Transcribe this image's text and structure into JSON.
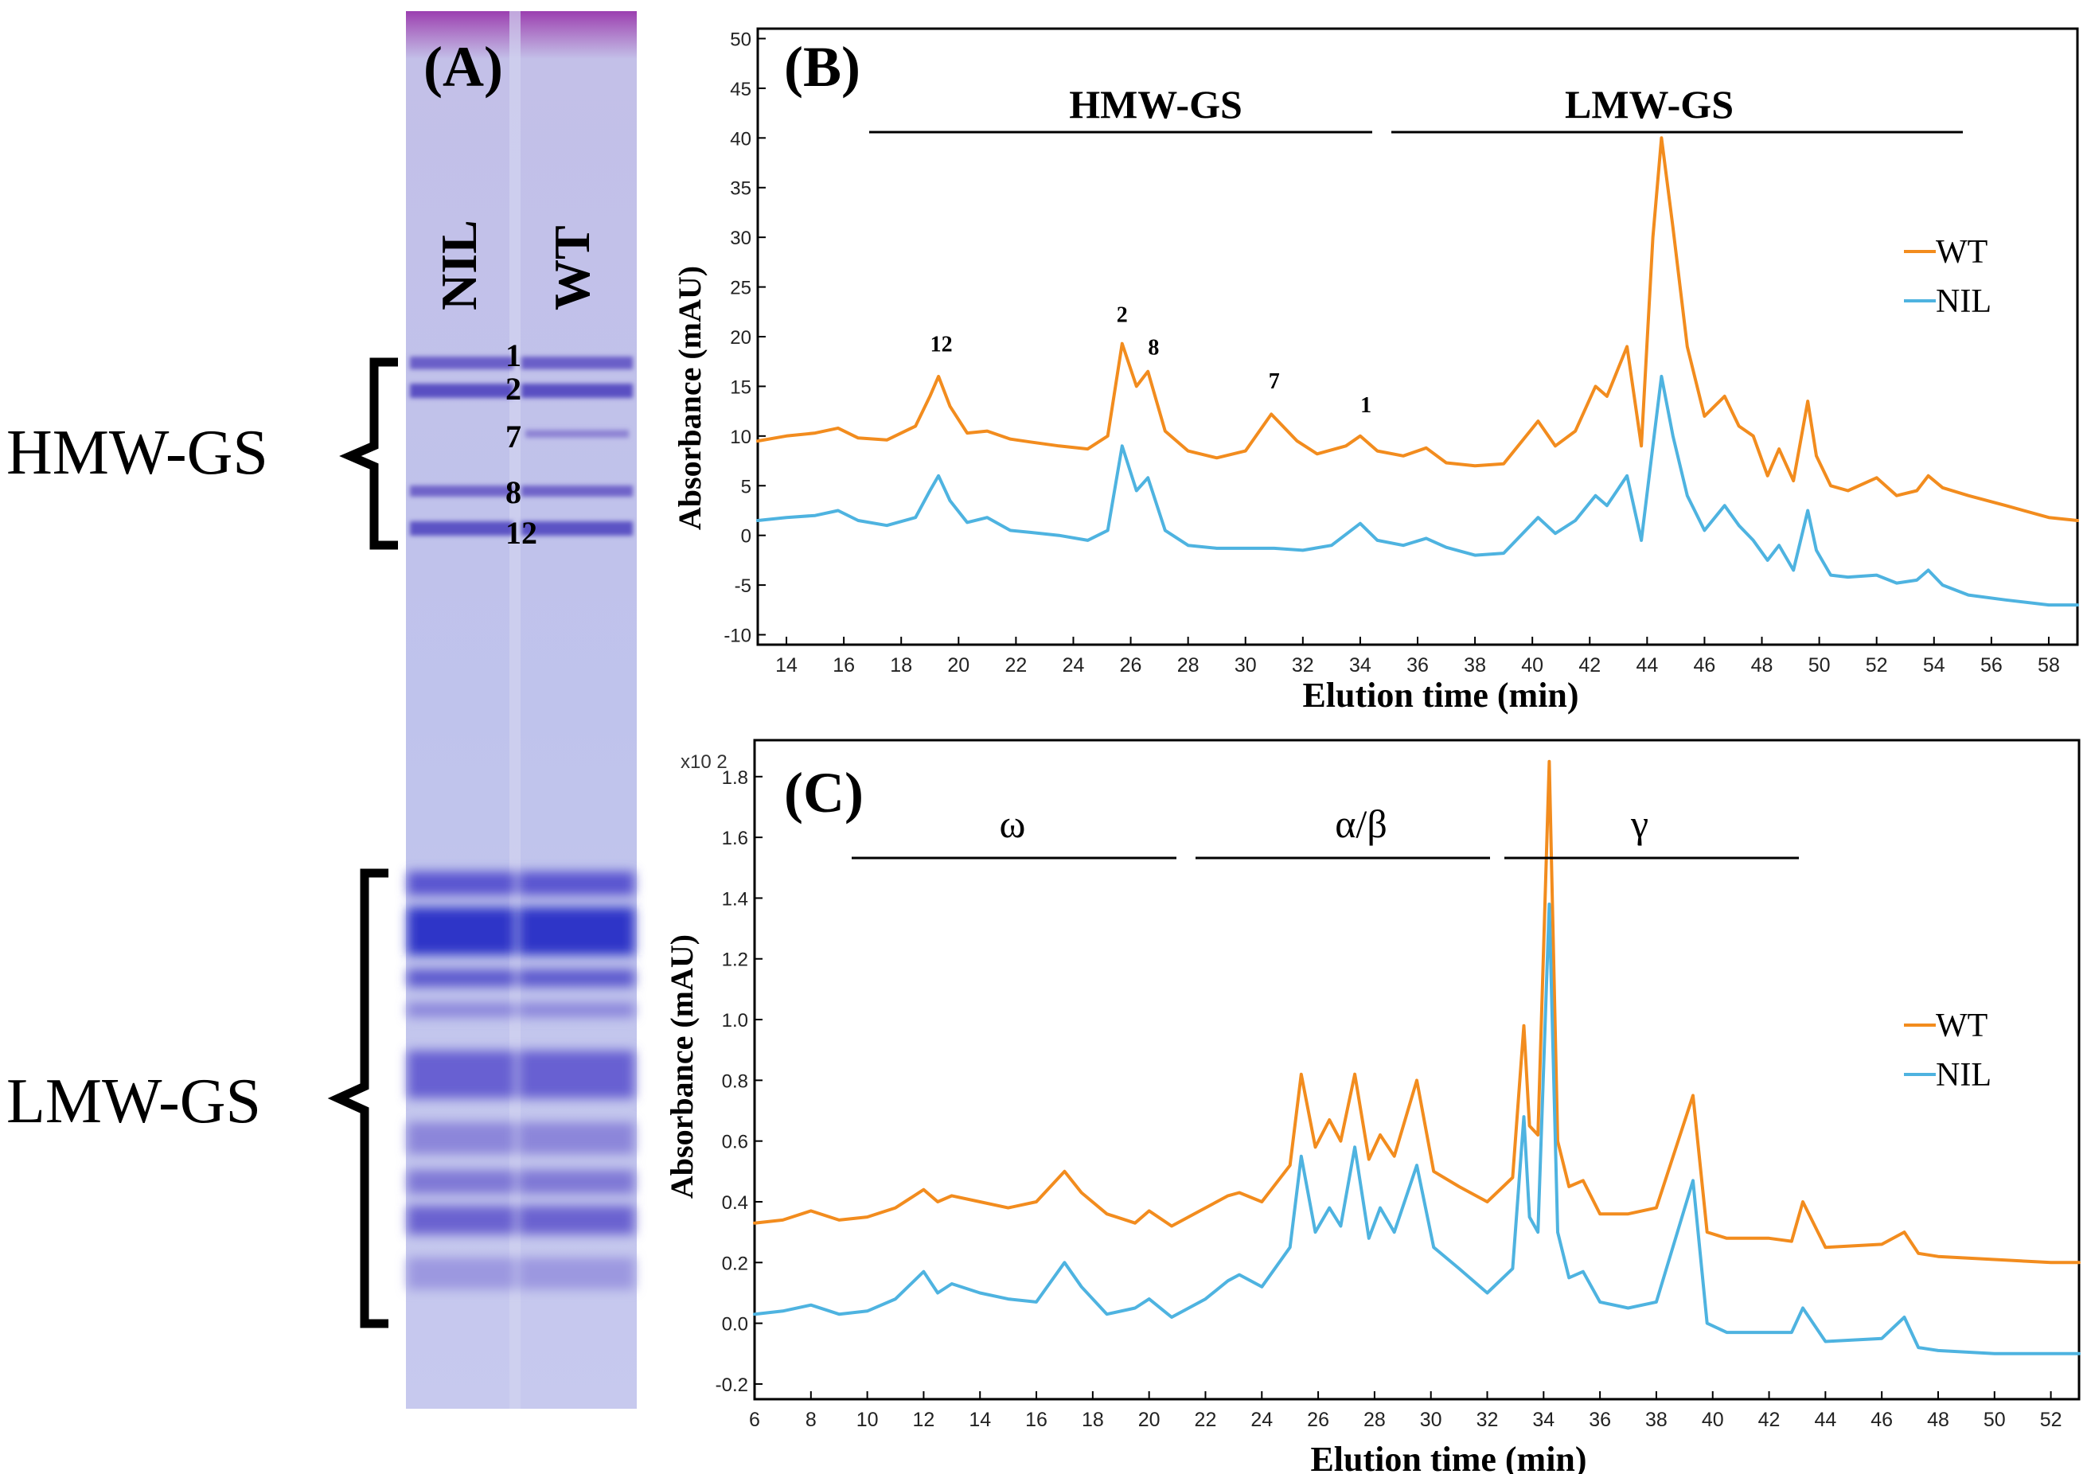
{
  "colors": {
    "WT": "#F28C1E",
    "NIL": "#4EB3E0",
    "axis": "#000000"
  },
  "panel_A": {
    "label": "(A)",
    "lane_labels": [
      "NIL",
      "WT"
    ],
    "group_labels": {
      "hmw": "HMW-GS",
      "lmw": "LMW-GS"
    },
    "band_labels": [
      "1",
      "2",
      "7",
      "8",
      "12"
    ]
  },
  "panel_B": {
    "label": "(B)",
    "region_labels": [
      "HMW-GS",
      "LMW-GS"
    ],
    "peak_labels": [
      "12",
      "2",
      "8",
      "7",
      "1"
    ],
    "xlabel": "Elution time (min)",
    "ylabel": "Absorbance (mAU)",
    "legend": [
      "WT",
      "NIL"
    ]
  },
  "panel_C": {
    "label": "(C)",
    "region_labels": [
      "ω",
      "α/β",
      "γ"
    ],
    "scale_note": "x10 2",
    "xlabel": "Elution time (min)",
    "ylabel": "Absorbance (mAU)",
    "legend": [
      "WT",
      "NIL"
    ]
  },
  "chart_data": [
    {
      "panel": "B",
      "type": "line",
      "title": "",
      "xlabel": "Elution time (min)",
      "ylabel": "Absorbance (mAU)",
      "xlim": [
        13,
        59
      ],
      "ylim": [
        -11,
        51
      ],
      "xticks": [
        14,
        16,
        18,
        20,
        22,
        24,
        26,
        28,
        30,
        32,
        34,
        36,
        38,
        40,
        42,
        44,
        46,
        48,
        50,
        52,
        54,
        56,
        58
      ],
      "yticks": [
        -10,
        -5,
        0,
        5,
        10,
        15,
        20,
        25,
        30,
        35,
        40,
        45,
        50
      ],
      "legend_position": "right",
      "grid": false,
      "series": [
        {
          "name": "WT",
          "x": [
            13,
            14,
            15,
            15.8,
            16.5,
            17.5,
            18.5,
            19,
            19.3,
            19.7,
            20.3,
            21,
            21.8,
            22.5,
            23.5,
            24.5,
            25.2,
            25.7,
            26.2,
            26.6,
            27.2,
            28,
            29,
            30,
            30.9,
            31.8,
            32.5,
            33.5,
            34,
            34.6,
            35.5,
            36.3,
            37,
            38,
            39,
            40.2,
            40.8,
            41.5,
            42.2,
            42.6,
            43.3,
            43.8,
            44.2,
            44.5,
            44.9,
            45.4,
            46,
            46.7,
            47.2,
            47.7,
            48.2,
            48.6,
            49.1,
            49.6,
            49.9,
            50.4,
            51,
            52,
            52.7,
            53.4,
            53.8,
            54.3,
            55.2,
            56.5,
            58,
            59
          ],
          "y": [
            9.5,
            10,
            10.3,
            10.8,
            9.8,
            9.6,
            11,
            14,
            16,
            13,
            10.3,
            10.5,
            9.7,
            9.4,
            9,
            8.7,
            10,
            19.3,
            15,
            16.5,
            10.5,
            8.5,
            7.8,
            8.5,
            12.2,
            9.5,
            8.2,
            9,
            10,
            8.5,
            8,
            8.8,
            7.3,
            7,
            7.2,
            11.5,
            9,
            10.5,
            15,
            14,
            19,
            9,
            30,
            40,
            31,
            19,
            12,
            14,
            11,
            10,
            6,
            8.7,
            5.5,
            13.5,
            8,
            5,
            4.5,
            5.8,
            4,
            4.5,
            6,
            4.8,
            4,
            3,
            1.8,
            1.5
          ]
        },
        {
          "name": "NIL",
          "x": [
            13,
            14,
            15,
            15.8,
            16.5,
            17.5,
            18.5,
            19,
            19.3,
            19.7,
            20.3,
            21,
            21.8,
            22.5,
            23.5,
            24.5,
            25.2,
            25.7,
            26.2,
            26.6,
            27.2,
            28,
            29,
            30,
            31,
            32,
            33,
            34,
            34.6,
            35.5,
            36.3,
            37,
            38,
            39,
            40.2,
            40.8,
            41.5,
            42.2,
            42.6,
            43.3,
            43.8,
            44.2,
            44.5,
            44.9,
            45.4,
            46,
            46.7,
            47.2,
            47.7,
            48.2,
            48.6,
            49.1,
            49.6,
            49.9,
            50.4,
            51,
            52,
            52.7,
            53.4,
            53.8,
            54.3,
            55.2,
            56.5,
            58,
            59
          ],
          "y": [
            1.5,
            1.8,
            2,
            2.5,
            1.5,
            1,
            1.8,
            4.5,
            6,
            3.5,
            1.3,
            1.8,
            0.5,
            0.3,
            0,
            -0.5,
            0.5,
            9,
            4.5,
            5.8,
            0.5,
            -1,
            -1.3,
            -1.3,
            -1.3,
            -1.5,
            -1,
            1.2,
            -0.5,
            -1,
            -0.3,
            -1.2,
            -2,
            -1.8,
            1.8,
            0.2,
            1.5,
            4,
            3,
            6,
            -0.5,
            9,
            16,
            10,
            4,
            0.5,
            3,
            1,
            -0.5,
            -2.5,
            -1,
            -3.5,
            2.5,
            -1.5,
            -4,
            -4.2,
            -4,
            -4.8,
            -4.5,
            -3.5,
            -5,
            -6,
            -6.5,
            -7,
            -7
          ]
        }
      ],
      "annotations": [
        "12",
        "2",
        "8",
        "7",
        "1"
      ]
    },
    {
      "panel": "C",
      "type": "line",
      "title": "",
      "xlabel": "Elution time (min)",
      "ylabel": "Absorbance (mAU)",
      "xlim": [
        6,
        53
      ],
      "ylim": [
        -0.25,
        1.92
      ],
      "xticks": [
        6,
        8,
        10,
        12,
        14,
        16,
        18,
        20,
        22,
        24,
        26,
        28,
        30,
        32,
        34,
        36,
        38,
        40,
        42,
        44,
        46,
        48,
        50,
        52
      ],
      "yticks": [
        -0.2,
        0.0,
        0.2,
        0.4,
        0.6,
        0.8,
        1.0,
        1.2,
        1.4,
        1.6,
        1.8
      ],
      "ytick_labels": [
        "-0.2",
        "0.0",
        "0.2",
        "0.4",
        "0.6",
        "0.8",
        "1.0",
        "1.2",
        "1.4",
        "1.6",
        "1.8"
      ],
      "scale_note": "x10 2",
      "legend_position": "right",
      "grid": false,
      "series": [
        {
          "name": "WT",
          "x": [
            6,
            7,
            8,
            9,
            10,
            11,
            12,
            12.5,
            13,
            14,
            15,
            16,
            17,
            17.6,
            18.5,
            19.5,
            20,
            20.8,
            22,
            22.8,
            23.2,
            24,
            25,
            25.4,
            25.9,
            26.4,
            26.8,
            27.3,
            27.8,
            28.2,
            28.7,
            29.5,
            30.1,
            31,
            32,
            32.9,
            33.3,
            33.5,
            33.8,
            34.2,
            34.5,
            34.9,
            35.4,
            36,
            37,
            38,
            39.3,
            39.8,
            40.5,
            42,
            42.8,
            43.2,
            44,
            46,
            46.8,
            47.3,
            48,
            50,
            52,
            53
          ],
          "y": [
            0.33,
            0.34,
            0.37,
            0.34,
            0.35,
            0.38,
            0.44,
            0.4,
            0.42,
            0.4,
            0.38,
            0.4,
            0.5,
            0.43,
            0.36,
            0.33,
            0.37,
            0.32,
            0.38,
            0.42,
            0.43,
            0.4,
            0.52,
            0.82,
            0.58,
            0.67,
            0.6,
            0.82,
            0.54,
            0.62,
            0.55,
            0.8,
            0.5,
            0.45,
            0.4,
            0.48,
            0.98,
            0.65,
            0.62,
            1.85,
            0.6,
            0.45,
            0.47,
            0.36,
            0.36,
            0.38,
            0.75,
            0.3,
            0.28,
            0.28,
            0.27,
            0.4,
            0.25,
            0.26,
            0.3,
            0.23,
            0.22,
            0.21,
            0.2,
            0.2
          ]
        },
        {
          "name": "NIL",
          "x": [
            6,
            7,
            8,
            9,
            10,
            11,
            12,
            12.5,
            13,
            14,
            15,
            16,
            17,
            17.6,
            18.5,
            19.5,
            20,
            20.8,
            22,
            22.8,
            23.2,
            24,
            25,
            25.4,
            25.9,
            26.4,
            26.8,
            27.3,
            27.8,
            28.2,
            28.7,
            29.5,
            30.1,
            31,
            32,
            32.9,
            33.3,
            33.5,
            33.8,
            34.2,
            34.5,
            34.9,
            35.4,
            36,
            37,
            38,
            39.3,
            39.8,
            40.5,
            42,
            42.8,
            43.2,
            44,
            46,
            46.8,
            47.3,
            48,
            50,
            52,
            53
          ],
          "y": [
            0.03,
            0.04,
            0.06,
            0.03,
            0.04,
            0.08,
            0.17,
            0.1,
            0.13,
            0.1,
            0.08,
            0.07,
            0.2,
            0.12,
            0.03,
            0.05,
            0.08,
            0.02,
            0.08,
            0.14,
            0.16,
            0.12,
            0.25,
            0.55,
            0.3,
            0.38,
            0.32,
            0.58,
            0.28,
            0.38,
            0.3,
            0.52,
            0.25,
            0.18,
            0.1,
            0.18,
            0.68,
            0.35,
            0.3,
            1.38,
            0.3,
            0.15,
            0.17,
            0.07,
            0.05,
            0.07,
            0.47,
            0.0,
            -0.03,
            -0.03,
            -0.03,
            0.05,
            -0.06,
            -0.05,
            0.02,
            -0.08,
            -0.09,
            -0.1,
            -0.1,
            -0.1
          ]
        }
      ],
      "annotations": [
        "ω",
        "α/β",
        "γ"
      ]
    }
  ]
}
